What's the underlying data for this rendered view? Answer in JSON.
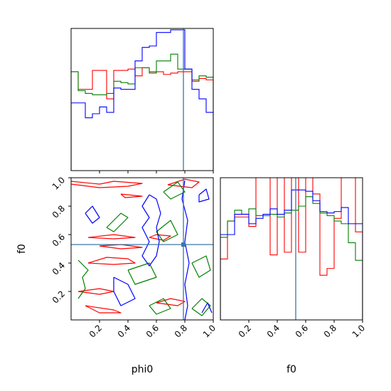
{
  "chart_data": [
    {
      "panel": "phi0-marginal",
      "type": "histogram",
      "xlim": [
        0,
        1
      ],
      "truth": 0.79,
      "bins": 20,
      "series": [
        {
          "color": "#ff0000",
          "values": [
            0.73,
            0.6,
            0.6,
            0.74,
            0.74,
            0.53,
            0.74,
            0.74,
            0.75,
            0.7,
            0.76,
            0.73,
            0.73,
            0.71,
            0.72,
            0.73,
            0.73,
            0.67,
            0.68,
            0.67
          ]
        },
        {
          "color": "#008000",
          "values": [
            0.73,
            0.59,
            0.57,
            0.56,
            0.56,
            0.57,
            0.66,
            0.65,
            0.64,
            0.76,
            0.76,
            0.72,
            0.81,
            0.81,
            0.86,
            0.75,
            0.75,
            0.66,
            0.7,
            0.69
          ]
        },
        {
          "color": "#0000ff",
          "values": [
            0.5,
            0.5,
            0.39,
            0.42,
            0.47,
            0.43,
            0.61,
            0.6,
            0.6,
            0.81,
            0.91,
            0.92,
            1.02,
            1.02,
            1.04,
            1.04,
            0.75,
            0.6,
            0.53,
            0.43
          ]
        }
      ]
    },
    {
      "panel": "phi0-f0-joint",
      "type": "contour",
      "xlabel": "phi0",
      "ylabel": "f0",
      "xlim": [
        0,
        1
      ],
      "ylim": [
        0,
        1
      ],
      "xticks": [
        "0.2",
        "0.4",
        "0.6",
        "0.8",
        "1.0"
      ],
      "yticks": [
        "0.2",
        "0.4",
        "0.6",
        "0.8",
        "1.0"
      ],
      "truth": [
        0.79,
        0.53
      ],
      "series": [
        {
          "color": "#ff0000",
          "paths": [
            [
              [
                0.0,
                0.975
              ],
              [
                0.2,
                0.955
              ],
              [
                0.3,
                0.975
              ],
              [
                0.5,
                0.96
              ],
              [
                0.4,
                0.94
              ],
              [
                0.2,
                0.93
              ],
              [
                0.0,
                0.955
              ]
            ],
            [
              [
                0.35,
                0.885
              ],
              [
                0.5,
                0.87
              ],
              [
                0.38,
                0.86
              ],
              [
                0.35,
                0.885
              ]
            ],
            [
              [
                0.12,
                0.58
              ],
              [
                0.3,
                0.57
              ],
              [
                0.45,
                0.58
              ],
              [
                0.3,
                0.6
              ],
              [
                0.12,
                0.58
              ]
            ],
            [
              [
                0.55,
                0.58
              ],
              [
                0.65,
                0.56
              ],
              [
                0.7,
                0.59
              ],
              [
                0.6,
                0.6
              ],
              [
                0.55,
                0.58
              ]
            ],
            [
              [
                0.2,
                0.52
              ],
              [
                0.35,
                0.5
              ],
              [
                0.5,
                0.51
              ],
              [
                0.35,
                0.53
              ],
              [
                0.2,
                0.52
              ]
            ],
            [
              [
                0.12,
                0.4
              ],
              [
                0.3,
                0.39
              ],
              [
                0.45,
                0.4
              ],
              [
                0.4,
                0.43
              ],
              [
                0.25,
                0.44
              ],
              [
                0.12,
                0.4
              ]
            ],
            [
              [
                0.05,
                0.2
              ],
              [
                0.2,
                0.22
              ],
              [
                0.3,
                0.2
              ],
              [
                0.2,
                0.18
              ],
              [
                0.05,
                0.2
              ]
            ],
            [
              [
                0.1,
                0.1
              ],
              [
                0.3,
                0.07
              ],
              [
                0.35,
                0.05
              ],
              [
                0.2,
                0.05
              ],
              [
                0.1,
                0.1
              ]
            ],
            [
              [
                0.6,
                0.12
              ],
              [
                0.75,
                0.1
              ],
              [
                0.8,
                0.13
              ],
              [
                0.7,
                0.15
              ],
              [
                0.6,
                0.12
              ]
            ],
            [
              [
                0.68,
                0.95
              ],
              [
                0.85,
                0.93
              ],
              [
                0.9,
                0.97
              ],
              [
                0.8,
                0.99
              ],
              [
                0.68,
                0.95
              ]
            ]
          ]
        },
        {
          "color": "#008000",
          "paths": [
            [
              [
                0.05,
                0.15
              ],
              [
                0.1,
                0.22
              ],
              [
                0.08,
                0.3
              ],
              [
                0.12,
                0.35
              ],
              [
                0.05,
                0.42
              ]
            ],
            [
              [
                0.25,
                0.65
              ],
              [
                0.35,
                0.75
              ],
              [
                0.4,
                0.72
              ],
              [
                0.3,
                0.62
              ],
              [
                0.25,
                0.65
              ]
            ],
            [
              [
                0.4,
                0.35
              ],
              [
                0.55,
                0.4
              ],
              [
                0.6,
                0.3
              ],
              [
                0.45,
                0.25
              ],
              [
                0.4,
                0.35
              ]
            ],
            [
              [
                0.6,
                0.62
              ],
              [
                0.7,
                0.7
              ],
              [
                0.75,
                0.6
              ],
              [
                0.65,
                0.55
              ],
              [
                0.6,
                0.62
              ]
            ],
            [
              [
                0.65,
                0.9
              ],
              [
                0.75,
                0.97
              ],
              [
                0.8,
                0.9
              ],
              [
                0.7,
                0.85
              ],
              [
                0.65,
                0.9
              ]
            ],
            [
              [
                0.85,
                0.4
              ],
              [
                0.95,
                0.45
              ],
              [
                0.98,
                0.35
              ],
              [
                0.9,
                0.3
              ],
              [
                0.85,
                0.4
              ]
            ],
            [
              [
                0.55,
                0.1
              ],
              [
                0.65,
                0.15
              ],
              [
                0.7,
                0.08
              ],
              [
                0.6,
                0.04
              ],
              [
                0.55,
                0.1
              ]
            ],
            [
              [
                0.85,
                0.08
              ],
              [
                0.92,
                0.15
              ],
              [
                0.98,
                0.1
              ],
              [
                0.92,
                0.03
              ],
              [
                0.85,
                0.08
              ]
            ]
          ]
        },
        {
          "color": "#0000ff",
          "paths": [
            [
              [
                0.55,
                0.88
              ],
              [
                0.5,
                0.8
              ],
              [
                0.55,
                0.72
              ],
              [
                0.5,
                0.65
              ],
              [
                0.55,
                0.55
              ],
              [
                0.5,
                0.45
              ],
              [
                0.55,
                0.38
              ],
              [
                0.6,
                0.45
              ],
              [
                0.62,
                0.55
              ],
              [
                0.6,
                0.65
              ],
              [
                0.63,
                0.75
              ],
              [
                0.6,
                0.85
              ],
              [
                0.55,
                0.88
              ]
            ],
            [
              [
                0.8,
                0.98
              ],
              [
                0.78,
                0.85
              ],
              [
                0.82,
                0.7
              ],
              [
                0.8,
                0.55
              ],
              [
                0.83,
                0.4
              ],
              [
                0.8,
                0.25
              ],
              [
                0.82,
                0.1
              ],
              [
                0.8,
                0.0
              ]
            ],
            [
              [
                0.3,
                0.3
              ],
              [
                0.4,
                0.25
              ],
              [
                0.45,
                0.15
              ],
              [
                0.35,
                0.1
              ],
              [
                0.3,
                0.2
              ],
              [
                0.3,
                0.3
              ]
            ],
            [
              [
                0.1,
                0.75
              ],
              [
                0.15,
                0.8
              ],
              [
                0.2,
                0.72
              ],
              [
                0.15,
                0.68
              ],
              [
                0.1,
                0.75
              ]
            ],
            [
              [
                0.9,
                0.88
              ],
              [
                0.95,
                0.92
              ],
              [
                0.97,
                0.85
              ],
              [
                0.9,
                0.83
              ],
              [
                0.9,
                0.88
              ]
            ],
            [
              [
                0.92,
                0.05
              ],
              [
                0.96,
                0.12
              ],
              [
                0.99,
                0.05
              ]
            ]
          ]
        }
      ]
    },
    {
      "panel": "f0-marginal",
      "type": "histogram",
      "xlabel": "f0",
      "xlim": [
        0,
        1
      ],
      "xticks": [
        "0.2",
        "0.4",
        "0.6",
        "0.8",
        "1.0"
      ],
      "truth": 0.53,
      "bins": 20,
      "series": [
        {
          "color": "#ff0000",
          "values": [
            0.45,
            0.73,
            0.76,
            0.76,
            0.69,
            1.05,
            1.05,
            0.48,
            1.05,
            0.5,
            1.05,
            0.5,
            1.05,
            0.93,
            0.33,
            0.38,
            0.75,
            1.05,
            1.05,
            0.65
          ]
        },
        {
          "color": "#008000",
          "values": [
            0.61,
            0.73,
            0.81,
            0.78,
            0.82,
            0.77,
            0.77,
            0.78,
            0.76,
            0.79,
            0.81,
            0.84,
            0.91,
            0.86,
            0.79,
            0.77,
            0.73,
            0.71,
            0.57,
            0.44
          ]
        },
        {
          "color": "#0000ff",
          "values": [
            0.63,
            0.63,
            0.78,
            0.78,
            0.71,
            0.75,
            0.78,
            0.82,
            0.78,
            0.81,
            0.96,
            0.96,
            0.95,
            0.88,
            0.8,
            0.79,
            0.8,
            0.83,
            0.71,
            0.71
          ]
        }
      ]
    }
  ],
  "truth_color": "#3a76a8"
}
